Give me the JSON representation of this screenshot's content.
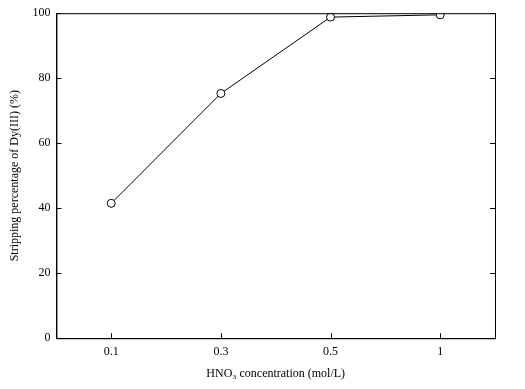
{
  "chart_data": {
    "type": "line",
    "x_label": "HNO₃ concentration (mol/L)",
    "y_label": "Stripping percentage of Dy(III) (%)",
    "categories": [
      "0.1",
      "0.3",
      "0.5",
      "1"
    ],
    "values": [
      41.5,
      75.3,
      98.8,
      99.5
    ],
    "color": "#000000",
    "marker": "circle",
    "ylim": [
      0,
      100
    ],
    "yticks": [
      0,
      20,
      40,
      60,
      80,
      100
    ],
    "grid": false
  }
}
